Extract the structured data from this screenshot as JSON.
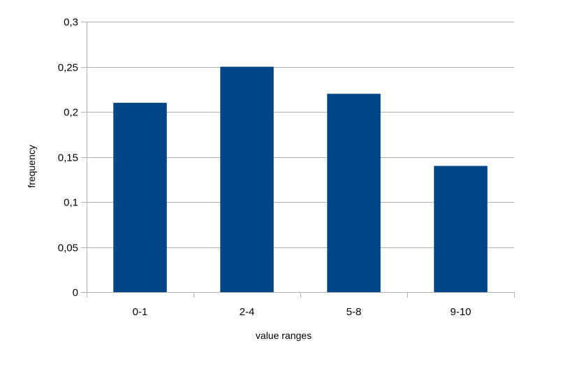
{
  "chart_data": {
    "type": "bar",
    "categories": [
      "0-1",
      "2-4",
      "5-8",
      "9-10"
    ],
    "values": [
      0.21,
      0.25,
      0.22,
      0.14
    ],
    "title": "",
    "xlabel": "value ranges",
    "ylabel": "frequency",
    "ylim": [
      0,
      0.3
    ],
    "yticks": [
      0,
      0.05,
      0.1,
      0.15,
      0.2,
      0.25,
      0.3
    ],
    "ytick_labels": [
      "0",
      "0,05",
      "0,1",
      "0,15",
      "0,2",
      "0,25",
      "0,3"
    ],
    "grid": true,
    "legend": "none",
    "bar_color": "#004586",
    "grid_color": "#b3b3b3"
  }
}
